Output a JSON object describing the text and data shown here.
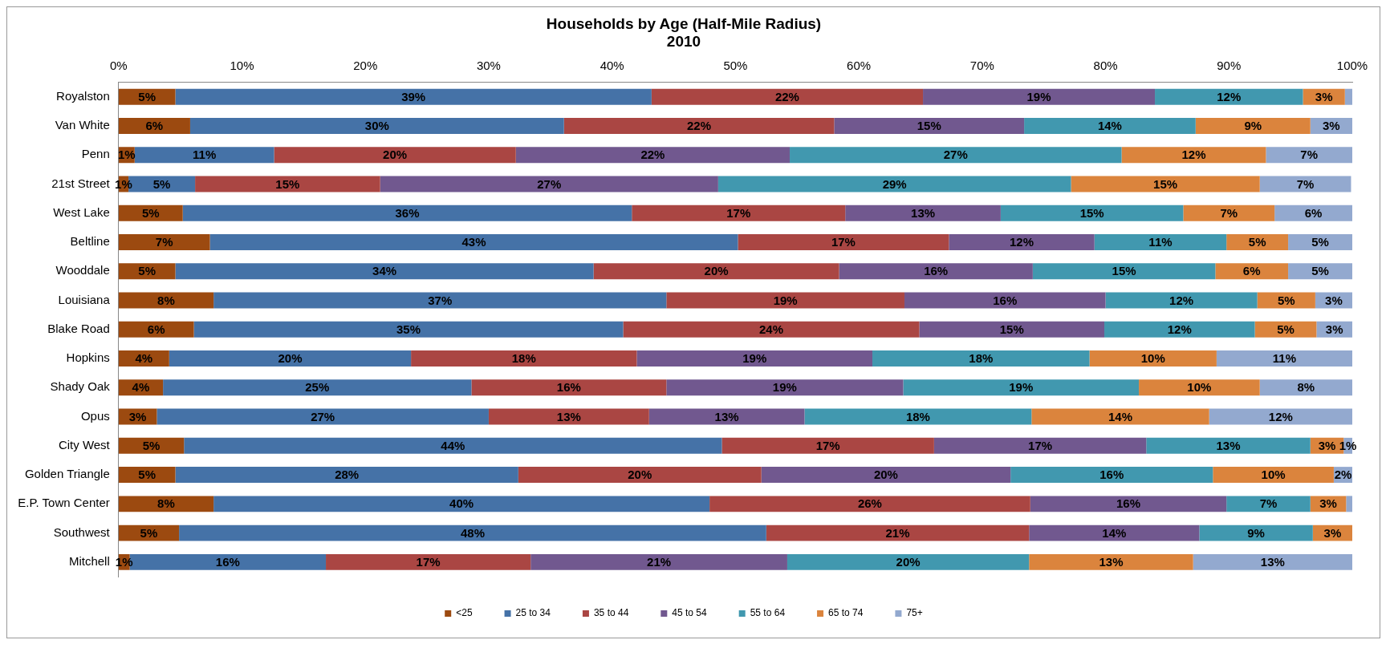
{
  "chart_data": {
    "type": "bar",
    "orientation": "horizontal",
    "stacked": true,
    "title": "Households by Age (Half-Mile Radius)",
    "subtitle": "2010",
    "categories": [
      "Royalston",
      "Van White",
      "Penn",
      "21st Street",
      "West Lake",
      "Beltline",
      "Wooddale",
      "Louisiana",
      "Blake Road",
      "Hopkins",
      "Shady Oak",
      "Opus",
      "City West",
      "Golden Triangle",
      "E.P. Town Center",
      "Southwest",
      "Mitchell"
    ],
    "xlim": [
      0,
      100
    ],
    "xticks": [
      {
        "value": 0,
        "label": "0%"
      },
      {
        "value": 10,
        "label": "10%"
      },
      {
        "value": 20,
        "label": "20%"
      },
      {
        "value": 30,
        "label": "30%"
      },
      {
        "value": 40,
        "label": "40%"
      },
      {
        "value": 50,
        "label": "50%"
      },
      {
        "value": 60,
        "label": "60%"
      },
      {
        "value": 70,
        "label": "70%"
      },
      {
        "value": 80,
        "label": "80%"
      },
      {
        "value": 90,
        "label": "90%"
      },
      {
        "value": 100,
        "label": "100%"
      }
    ],
    "grid": false,
    "legend": "bottom",
    "series": [
      {
        "name": "<25",
        "color": "#9c4a10",
        "values": [
          4.6,
          5.8,
          1.3,
          0.8,
          5.2,
          7.4,
          4.6,
          7.7,
          6.1,
          4.1,
          3.6,
          3.1,
          5.3,
          4.6,
          7.7,
          4.9,
          0.9
        ],
        "value_labels": [
          "5%",
          "6%",
          "1%",
          "1%",
          "5%",
          "7%",
          "5%",
          "8%",
          "6%",
          "4%",
          "4%",
          "3%",
          "5%",
          "5%",
          "8%",
          "5%",
          "1%"
        ]
      },
      {
        "name": "25 to 34",
        "color": "#4572a7",
        "values": [
          38.6,
          30.3,
          11.3,
          5.4,
          36.4,
          42.8,
          33.9,
          36.7,
          34.8,
          19.6,
          25.0,
          26.9,
          43.6,
          27.8,
          40.2,
          47.6,
          15.9
        ],
        "value_labels": [
          "39%",
          "30%",
          "11%",
          "5%",
          "36%",
          "43%",
          "34%",
          "37%",
          "35%",
          "20%",
          "25%",
          "27%",
          "44%",
          "28%",
          "40%",
          "48%",
          "16%"
        ]
      },
      {
        "name": "35 to 44",
        "color": "#aa4643",
        "values": [
          22.0,
          21.9,
          19.6,
          15.0,
          17.3,
          17.1,
          19.9,
          19.3,
          24.0,
          18.3,
          15.8,
          13.0,
          17.2,
          19.7,
          26.0,
          21.3,
          16.6
        ],
        "value_labels": [
          "22%",
          "22%",
          "20%",
          "15%",
          "17%",
          "17%",
          "20%",
          "19%",
          "24%",
          "18%",
          "16%",
          "13%",
          "17%",
          "20%",
          "26%",
          "21%",
          "17%"
        ]
      },
      {
        "name": "45 to 54",
        "color": "#71588f",
        "values": [
          18.8,
          15.4,
          22.2,
          27.4,
          12.6,
          11.8,
          15.7,
          16.3,
          15.0,
          19.1,
          19.2,
          12.6,
          17.2,
          20.2,
          15.9,
          13.8,
          20.8
        ],
        "value_labels": [
          "19%",
          "15%",
          "22%",
          "27%",
          "13%",
          "12%",
          "16%",
          "16%",
          "15%",
          "19%",
          "19%",
          "13%",
          "17%",
          "20%",
          "16%",
          "14%",
          "21%"
        ]
      },
      {
        "name": "55 to 64",
        "color": "#4198af",
        "values": [
          12.0,
          13.9,
          26.9,
          28.6,
          14.8,
          10.7,
          14.8,
          12.3,
          12.2,
          17.6,
          19.1,
          18.4,
          13.3,
          16.4,
          6.8,
          9.2,
          19.6
        ],
        "value_labels": [
          "12%",
          "14%",
          "27%",
          "29%",
          "15%",
          "11%",
          "15%",
          "12%",
          "12%",
          "18%",
          "19%",
          "18%",
          "13%",
          "16%",
          "7%",
          "9%",
          "20%"
        ]
      },
      {
        "name": "65 to 74",
        "color": "#db843d",
        "values": [
          3.4,
          9.3,
          11.7,
          15.3,
          7.4,
          5.0,
          5.9,
          4.7,
          5.0,
          10.3,
          9.8,
          14.4,
          2.7,
          9.8,
          2.9,
          3.2,
          13.3
        ],
        "value_labels": [
          "3%",
          "9%",
          "12%",
          "15%",
          "7%",
          "5%",
          "6%",
          "5%",
          "5%",
          "10%",
          "10%",
          "14%",
          "3%",
          "10%",
          "3%",
          "3%",
          "13%"
        ]
      },
      {
        "name": "75+",
        "color": "#93a9cf",
        "values": [
          0.6,
          3.4,
          7.0,
          7.4,
          6.3,
          5.2,
          5.2,
          3.0,
          2.9,
          11.0,
          7.5,
          11.6,
          0.7,
          1.5,
          0.5,
          0,
          12.9
        ],
        "value_labels": [
          null,
          "3%",
          "7%",
          "7%",
          "6%",
          "5%",
          "5%",
          "3%",
          "3%",
          "11%",
          "8%",
          "12%",
          "1%",
          "2%",
          null,
          null,
          "13%"
        ]
      }
    ]
  }
}
